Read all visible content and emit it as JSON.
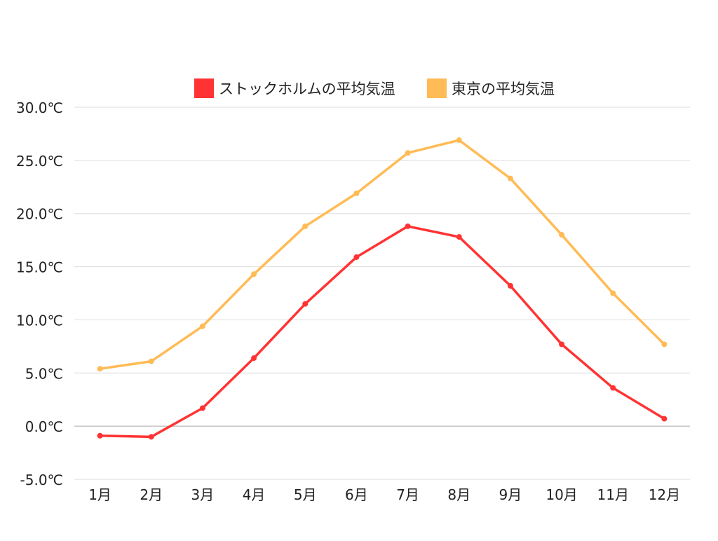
{
  "chart_data": {
    "type": "line",
    "title": "",
    "xlabel": "",
    "ylabel": "",
    "categories": [
      "1月",
      "2月",
      "3月",
      "4月",
      "5月",
      "6月",
      "7月",
      "8月",
      "9月",
      "10月",
      "11月",
      "12月"
    ],
    "y_ticks": [
      "30.0℃",
      "25.0℃",
      "20.0℃",
      "15.0℃",
      "10.0℃",
      "5.0℃",
      "0.0℃",
      "-5.0℃"
    ],
    "y_tick_values": [
      30,
      25,
      20,
      15,
      10,
      5,
      0,
      -5
    ],
    "ylim": [
      -5,
      30
    ],
    "grid": true,
    "legend_position": "top",
    "series": [
      {
        "name": "ストックホルムの平均気温",
        "color": "#ff3333",
        "values": [
          -0.9,
          -1.0,
          1.7,
          6.4,
          11.5,
          15.9,
          18.8,
          17.8,
          13.2,
          7.7,
          3.6,
          0.7
        ]
      },
      {
        "name": "東京の平均気温",
        "color": "#ffbb55",
        "values": [
          5.4,
          6.1,
          9.4,
          14.3,
          18.8,
          21.9,
          25.7,
          26.9,
          23.3,
          18.0,
          12.5,
          7.7
        ]
      }
    ]
  }
}
